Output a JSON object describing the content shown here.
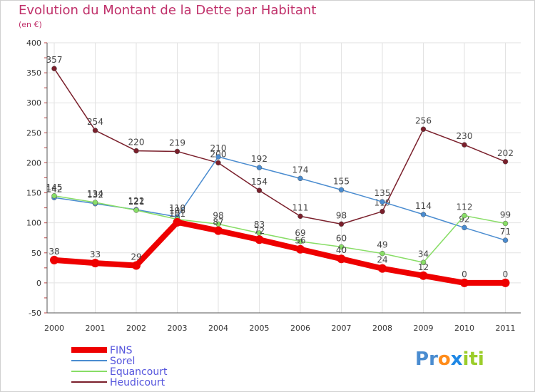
{
  "chart_data": {
    "type": "line",
    "title": "Evolution du Montant de la Dette par Habitant",
    "unit_label": "(en €)",
    "x": [
      "2000",
      "2001",
      "2002",
      "2003",
      "2004",
      "2005",
      "2006",
      "2007",
      "2008",
      "2009",
      "2010",
      "2011"
    ],
    "ylim": [
      -50,
      400
    ],
    "yticks": [
      "-50",
      "0",
      "50",
      "100",
      "150",
      "200",
      "250",
      "300",
      "350",
      "400"
    ],
    "grid": true,
    "legend_position": "bottom-left",
    "series": [
      {
        "name": "Heudicourt",
        "color": "#7a1f2b",
        "values": [
          357,
          254,
          220,
          219,
          200,
          154,
          111,
          98,
          119,
          256,
          230,
          202
        ]
      },
      {
        "name": "Sorel",
        "color": "#4a8cd0",
        "values": [
          142,
          132,
          122,
          110,
          210,
          192,
          174,
          155,
          135,
          114,
          92,
          71
        ]
      },
      {
        "name": "Equancourt",
        "color": "#88dd66",
        "values": [
          145,
          134,
          121,
          106,
          98,
          83,
          69,
          60,
          49,
          34,
          112,
          99
        ]
      },
      {
        "name": "FINS",
        "color": "#ee0000",
        "values": [
          38,
          33,
          29,
          101,
          87,
          72,
          56,
          40,
          24,
          12,
          0,
          0
        ]
      }
    ],
    "legend_order": [
      "FINS",
      "Sorel",
      "Equancourt",
      "Heudicourt"
    ]
  },
  "logo": {
    "text": "Proxiti",
    "letters": [
      "P",
      "r",
      "o",
      "x",
      "i",
      "t",
      "i"
    ],
    "colors": [
      "#4a8cd0",
      "#4a8cd0",
      "#ff8c1a",
      "#1e88e5",
      "#9bcd2a",
      "#9bcd2a",
      "#9bcd2a"
    ]
  }
}
